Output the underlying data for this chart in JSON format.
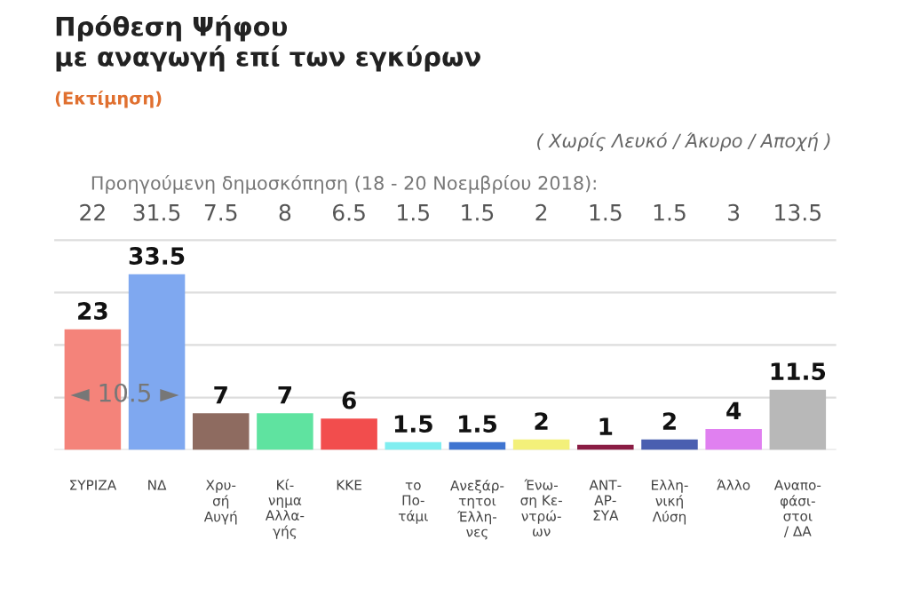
{
  "chart_data": {
    "type": "bar",
    "title": "Πρόθεση Ψήφου\nμε αναγωγή επί των εγκύρων",
    "subtitle": "(Εκτίμηση)",
    "categories": [
      "ΣΥΡΙΖΑ",
      "ΝΔ",
      "Χρυ-\nσή\nΑυγή",
      "Κί-\nνημα\nΑλλα-\nγής",
      "ΚΚΕ",
      "το\nΠο-\nτάμι",
      "Ανεξάρ-\nτητοι\nΈλλη-\nνες",
      "Ένω-\nση Κε-\nντρώ-\nων",
      "ΑΝΤ-\nΑΡ-\nΣΥΑ",
      "Ελλη-\nνική\nΛύση",
      "Άλλο",
      "Αναπο-\nφάσι-\nστοι\n/ ΔΑ"
    ],
    "values": [
      23,
      33.5,
      7,
      7,
      6,
      1.5,
      1.5,
      2,
      1,
      2,
      4,
      11.5
    ],
    "colors": [
      "#f4837a",
      "#7fa8f0",
      "#8e6b60",
      "#5fe3a0",
      "#f24d4d",
      "#80eef0",
      "#3f74d0",
      "#f3f07a",
      "#8a1c44",
      "#4a5fb0",
      "#e080f0",
      "#b8b8b8"
    ],
    "data_labels": true,
    "yticks": [
      {
        "value": 0,
        "label": null
      },
      {
        "value": 10,
        "label": null
      },
      {
        "value": 20,
        "label": null
      },
      {
        "value": 30,
        "label": null
      },
      {
        "value": 40,
        "label": null
      }
    ],
    "grid": "y",
    "annotations": [
      "( Χωρίς Λευκό / Άκυρο / Αποχή )",
      "Προηγούμενη δημοσκόπηση (18 - 20 Νοεμβρίου 2018):",
      "22",
      "31.5",
      "7.5",
      "8",
      "6.5",
      "1.5",
      "1.5",
      "2",
      "1.5",
      "1.5",
      "3",
      "13.5",
      "◄ 10.5 ►"
    ]
  }
}
